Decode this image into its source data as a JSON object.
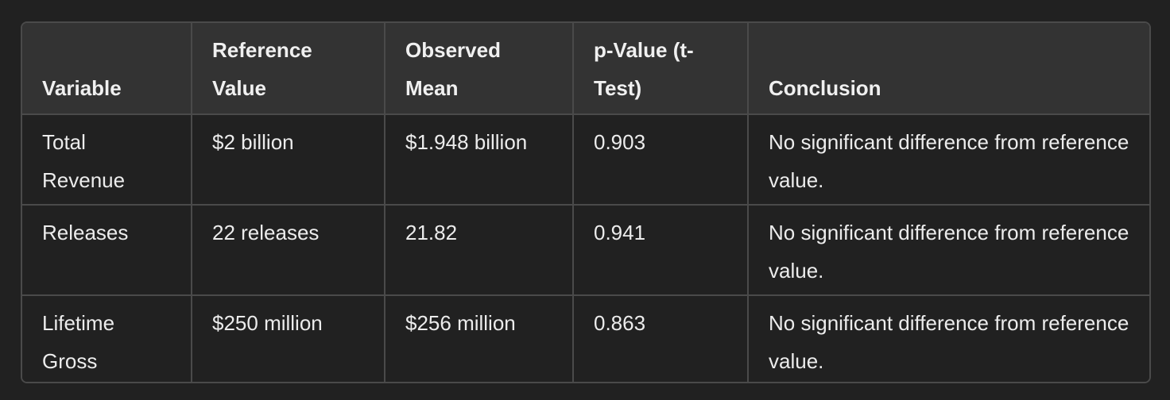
{
  "table": {
    "columns": [
      "Variable",
      "Reference Value",
      "Observed Mean",
      "p-Value (t-Test)",
      "Conclusion"
    ],
    "rows": [
      [
        "Total Revenue",
        "$2 billion",
        "$1.948 billion",
        "0.903",
        "No significant difference from reference value."
      ],
      [
        "Releases",
        "22 releases",
        "21.82",
        "0.941",
        "No significant difference from reference value."
      ],
      [
        "Lifetime Gross",
        "$250 million",
        "$256 million",
        "0.863",
        "No significant difference from reference value."
      ]
    ]
  }
}
